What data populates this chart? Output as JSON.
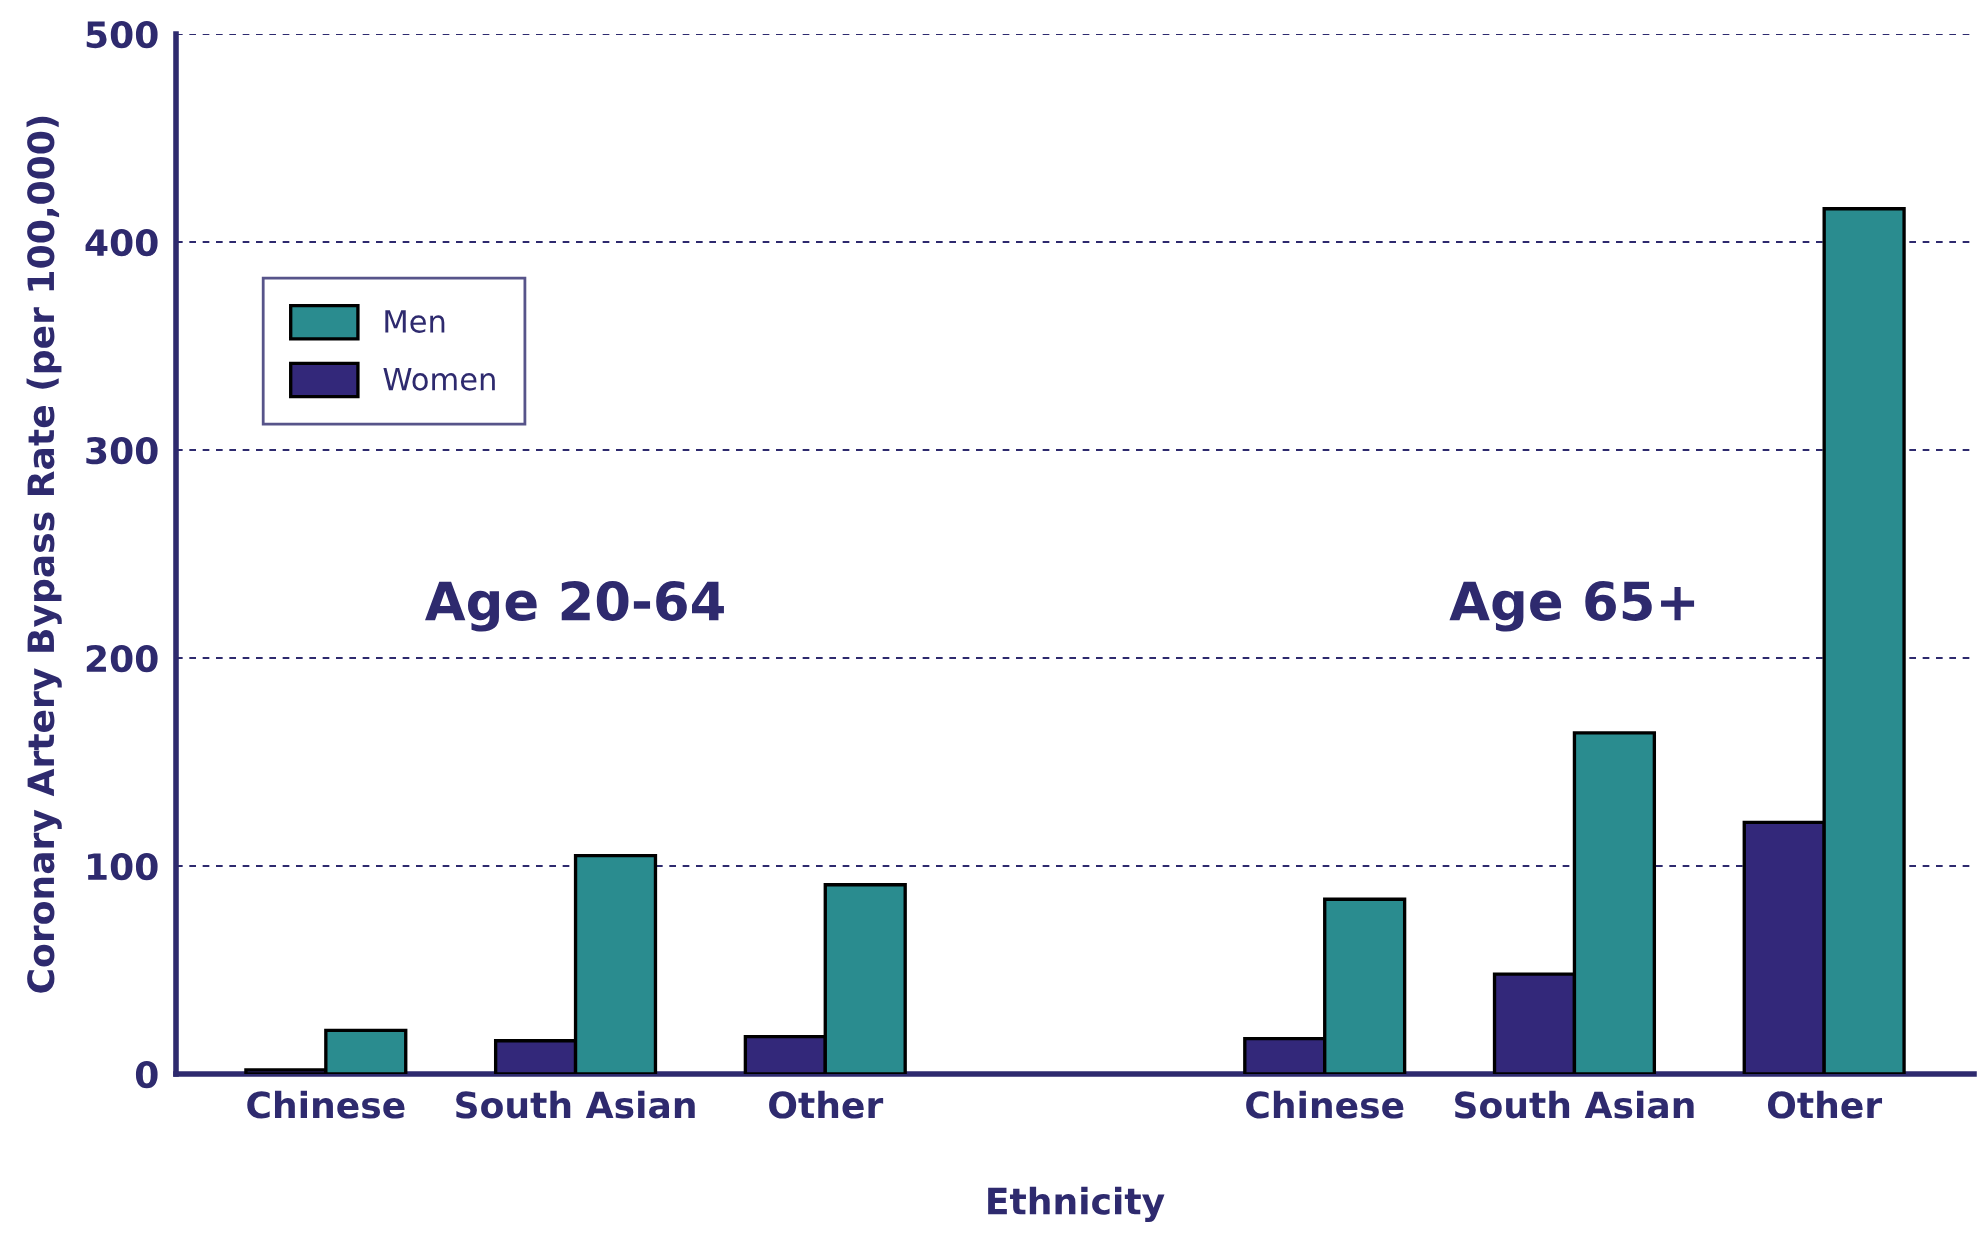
{
  "chart_data": {
    "type": "bar",
    "xlabel": "Ethnicity",
    "ylabel": "Coronary Artery Bypass Rate (per 100,000)",
    "categories": [
      "Chinese",
      "South Asian",
      "Other",
      null,
      "Chinese",
      "South Asian",
      "Other"
    ],
    "series": [
      {
        "name": "Women",
        "color": "#33287a",
        "values": [
          2,
          16,
          18,
          null,
          17,
          48,
          121
        ]
      },
      {
        "name": "Men",
        "color": "#2a8c8f",
        "values": [
          21,
          105,
          91,
          null,
          84,
          164,
          416
        ]
      }
    ],
    "ylim": [
      0,
      500
    ],
    "yticks": [
      0,
      100,
      200,
      300,
      400,
      500
    ],
    "grid": "y",
    "legend": "top left",
    "annotations": [
      "Age 20-64",
      "Age 65+"
    ]
  }
}
